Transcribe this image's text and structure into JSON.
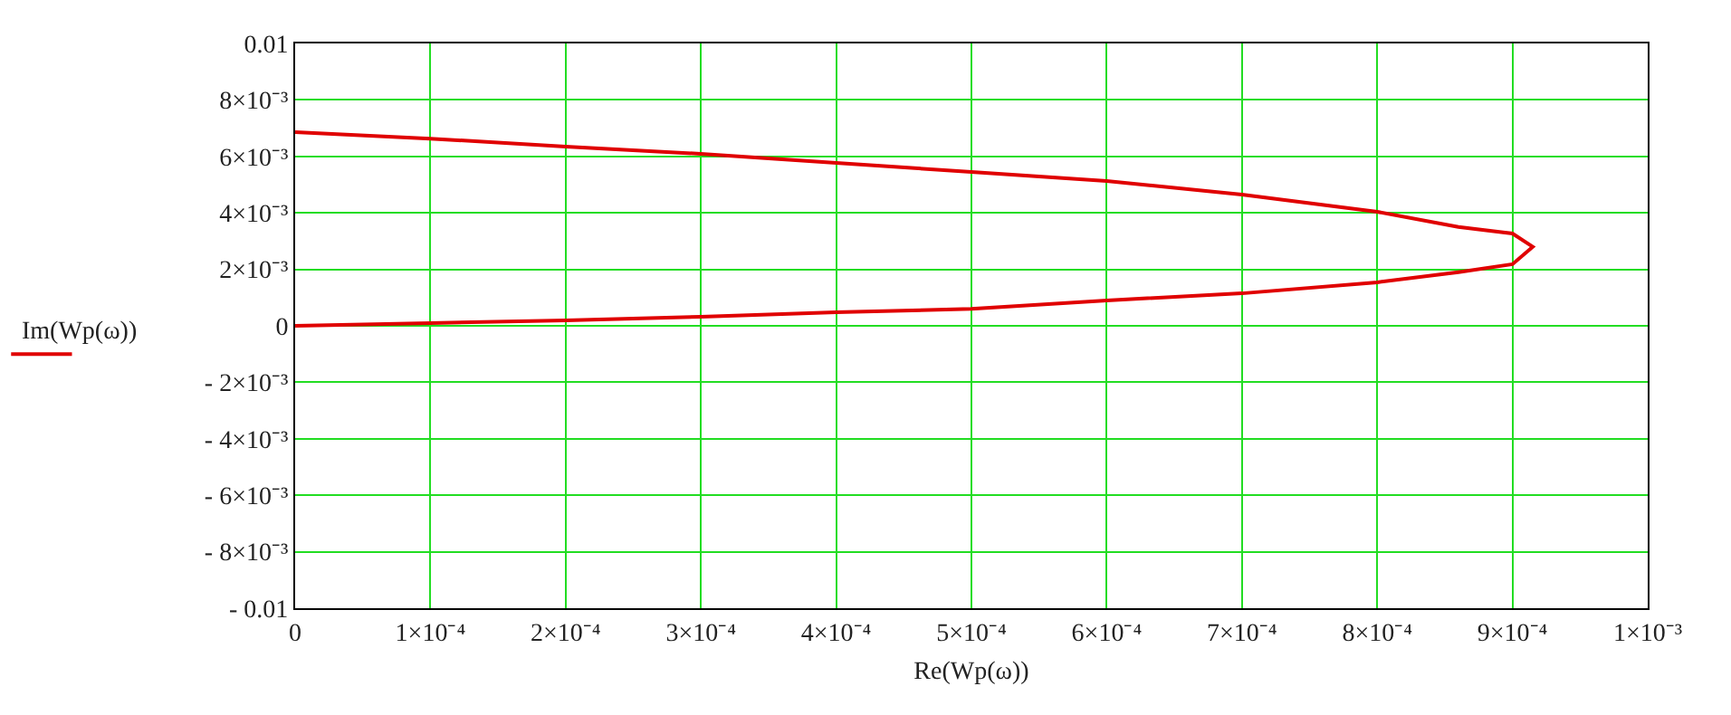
{
  "chart_data": {
    "type": "line",
    "xlabel": "Re(Wp(ω))",
    "ylabel": "Im(Wp(ω))",
    "series": [
      {
        "color": "#e00000",
        "x": [
          0,
          0.0001,
          0.0002,
          0.0003,
          0.0004,
          0.0005,
          0.0006,
          0.0007,
          0.0008,
          0.00086,
          0.0009,
          0.000915,
          0.0009,
          0.00086,
          0.0008,
          0.0007,
          0.0006,
          0.0005,
          0.0004,
          0.0003,
          0.0002,
          0.0001,
          0
        ],
        "values": [
          0.00686,
          0.00663,
          0.00635,
          0.00609,
          0.00577,
          0.00545,
          0.00513,
          0.00465,
          0.00404,
          0.0035,
          0.00327,
          0.0028,
          0.00218,
          0.0019,
          0.00154,
          0.00115,
          0.0009,
          0.0006,
          0.00048,
          0.00032,
          0.00019,
          0.0001,
          0
        ]
      }
    ],
    "xlim": [
      0,
      0.001
    ],
    "ylim": [
      -0.01,
      0.01
    ],
    "xticks": [
      0,
      {
        "value": 0.0001,
        "label": "1×10⁻⁴"
      },
      {
        "value": 0.0002,
        "label": "2×10⁻⁴"
      },
      {
        "value": 0.0003,
        "label": "3×10⁻⁴"
      },
      {
        "value": 0.0004,
        "label": "4×10⁻⁴"
      },
      {
        "value": 0.0005,
        "label": "5×10⁻⁴"
      },
      {
        "value": 0.0006,
        "label": "6×10⁻⁴"
      },
      {
        "value": 0.0007,
        "label": "7×10⁻⁴"
      },
      {
        "value": 0.0008,
        "label": "8×10⁻⁴"
      },
      {
        "value": 0.0009,
        "label": "9×10⁻⁴"
      },
      {
        "value": 0.001,
        "label": "1×10⁻³"
      }
    ],
    "yticks": [
      {
        "value": -0.01,
        "label": "- 0.01"
      },
      {
        "value": -0.008,
        "label": "- 8×10⁻³"
      },
      {
        "value": -0.006,
        "label": "- 6×10⁻³"
      },
      {
        "value": -0.004,
        "label": "- 4×10⁻³"
      },
      {
        "value": -0.002,
        "label": "- 2×10⁻³"
      },
      0,
      {
        "value": 0.002,
        "label": "2×10⁻³"
      },
      {
        "value": 0.004,
        "label": "4×10⁻³"
      },
      {
        "value": 0.006,
        "label": "6×10⁻³"
      },
      {
        "value": 0.008,
        "label": "8×10⁻³"
      },
      0.01
    ],
    "grid": true
  }
}
